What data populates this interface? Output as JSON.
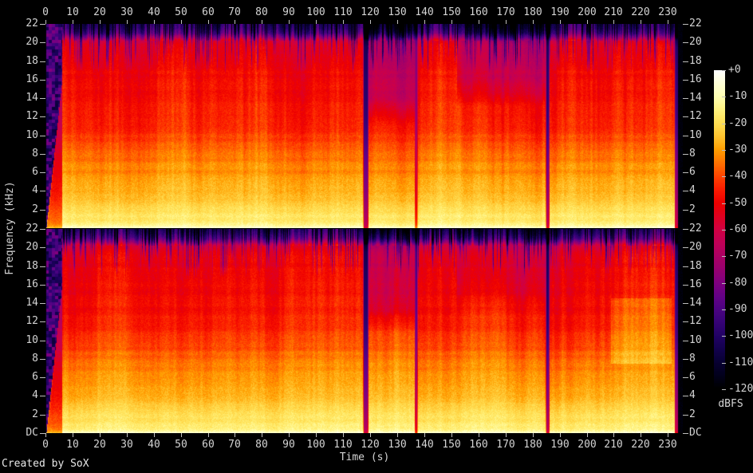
{
  "figure": {
    "credit": "Created by SoX"
  },
  "axes": {
    "time": {
      "title": "Time (s)",
      "ticks": [
        "0",
        "10",
        "20",
        "30",
        "40",
        "50",
        "60",
        "70",
        "80",
        "90",
        "100",
        "110",
        "120",
        "130",
        "140",
        "150",
        "160",
        "170",
        "180",
        "190",
        "200",
        "210",
        "220",
        "230"
      ]
    },
    "frequency": {
      "title": "Frequency (kHz)",
      "ticks": [
        "22",
        "20",
        "18",
        "16",
        "14",
        "12",
        "10",
        "8",
        "6",
        "4",
        "2"
      ],
      "dc_label": "DC"
    }
  },
  "colorbar": {
    "title": "dBFS",
    "ticks": [
      "+0",
      "-10",
      "-20",
      "-30",
      "-40",
      "-50",
      "-60",
      "-70",
      "-80",
      "-90",
      "-100",
      "-110",
      "-120"
    ]
  },
  "chart_data": {
    "type": "heatmap",
    "subtype": "stereo-audio-spectrogram",
    "title": "",
    "channels": 2,
    "channel_names": [
      "channel-1 (top)",
      "channel-2 (bottom)"
    ],
    "x_axis": {
      "label": "Time (s)",
      "min": 0,
      "max": 235.5,
      "tick_step": 10
    },
    "y_axis": {
      "label": "Frequency (kHz)",
      "min": 0,
      "max": 22,
      "tick_step": 2,
      "bottom_label": "DC"
    },
    "z_axis": {
      "label": "dBFS",
      "min": -120,
      "max": 0,
      "tick_step": 10
    },
    "grid": false,
    "legend_position": "right-colorbar",
    "audio_events": {
      "start_s": 0.4,
      "fade_in_sweep_end_s": 6.2,
      "end_s": 233.6,
      "silence_gaps_s": [
        118.4,
        137.0,
        185.6
      ]
    },
    "freq_profile_db": [
      [
        0,
        -4
      ],
      [
        0.3,
        -12
      ],
      [
        0.6,
        -15
      ],
      [
        1,
        -17
      ],
      [
        2,
        -20
      ],
      [
        3,
        -24
      ],
      [
        4,
        -27
      ],
      [
        5,
        -29
      ],
      [
        6,
        -31
      ],
      [
        7,
        -33
      ],
      [
        8,
        -35
      ],
      [
        9,
        -38
      ],
      [
        10,
        -41
      ],
      [
        12,
        -45
      ],
      [
        14,
        -47
      ],
      [
        16,
        -48
      ],
      [
        18,
        -50
      ],
      [
        19.5,
        -52
      ],
      [
        20.2,
        -58
      ],
      [
        20.6,
        -75
      ],
      [
        21,
        -88
      ],
      [
        21.5,
        -96
      ],
      [
        22,
        -102
      ]
    ],
    "features": [
      {
        "type": "gap",
        "t": 118.4,
        "width": 2.1,
        "depth": [
          1.0,
          1.0
        ]
      },
      {
        "type": "gap",
        "t": 137.0,
        "width": 1.3,
        "depth": [
          0.55,
          0.8
        ]
      },
      {
        "type": "gap",
        "t": 185.6,
        "width": 1.5,
        "depth": [
          0.95,
          0.95
        ]
      },
      {
        "type": "gap",
        "t": 233.2,
        "width": 1.6,
        "depth": [
          0.95,
          0.95
        ]
      },
      {
        "type": "dim_highs",
        "t0": 119,
        "t1": 136.5,
        "f0": 11,
        "loss": [
          14,
          14
        ]
      },
      {
        "type": "dim_highs",
        "t0": 152,
        "t1": 185,
        "f0": 13,
        "loss": [
          12,
          7
        ]
      },
      {
        "type": "bright_patch",
        "t0": 209,
        "t1": 231.5,
        "f0": 7.5,
        "f1": 14.5,
        "gain": [
          0,
          7
        ]
      }
    ],
    "palette_stops": [
      [
        0,
        "#ffffff"
      ],
      [
        -5,
        "#ffffd7"
      ],
      [
        -10,
        "#ffffb2"
      ],
      [
        -15,
        "#fff27d"
      ],
      [
        -20,
        "#ffdf52"
      ],
      [
        -25,
        "#ffc32e"
      ],
      [
        -30,
        "#ff9e00"
      ],
      [
        -35,
        "#ff7100"
      ],
      [
        -40,
        "#ff4400"
      ],
      [
        -45,
        "#fb1a00"
      ],
      [
        -50,
        "#ee0000"
      ],
      [
        -55,
        "#e00020"
      ],
      [
        -60,
        "#d10043"
      ],
      [
        -65,
        "#c00057"
      ],
      [
        -70,
        "#ac0064"
      ],
      [
        -75,
        "#970070"
      ],
      [
        -80,
        "#7f0080"
      ],
      [
        -85,
        "#650287"
      ],
      [
        -90,
        "#4c0382"
      ],
      [
        -95,
        "#360377"
      ],
      [
        -100,
        "#220266"
      ],
      [
        -105,
        "#13014d"
      ],
      [
        -110,
        "#080132"
      ],
      [
        -115,
        "#02001c"
      ],
      [
        -120,
        "#000000"
      ]
    ]
  }
}
